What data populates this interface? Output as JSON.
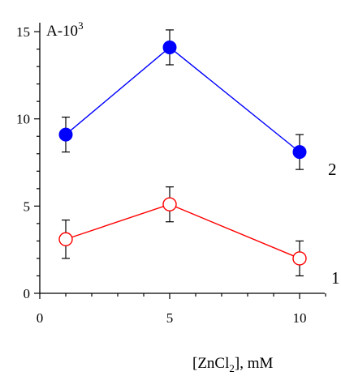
{
  "chart_data": {
    "type": "line",
    "title": "",
    "xlabel": "[ZnCl2], mM",
    "xlabel_main": "[ZnCl",
    "xlabel_sub": "2",
    "xlabel_tail": "], mM",
    "ylabel": "A-10",
    "ylabel_sup": "3",
    "xlim": [
      0,
      11
    ],
    "ylim": [
      0,
      15.7
    ],
    "xticks": [
      0,
      5,
      10
    ],
    "yticks": [
      0,
      5,
      10,
      15
    ],
    "grid": false,
    "series": [
      {
        "name": "1",
        "color": "#ff0000",
        "marker": "open-circle",
        "x": [
          1,
          5,
          10
        ],
        "y": [
          3.1,
          5.1,
          2.0
        ],
        "err": [
          1.1,
          1.0,
          1.0
        ]
      },
      {
        "name": "2",
        "color": "#0000ff",
        "marker": "filled-circle",
        "x": [
          1,
          5,
          10
        ],
        "y": [
          9.1,
          14.1,
          8.1
        ],
        "err": [
          1.0,
          1.0,
          1.0
        ]
      }
    ]
  }
}
